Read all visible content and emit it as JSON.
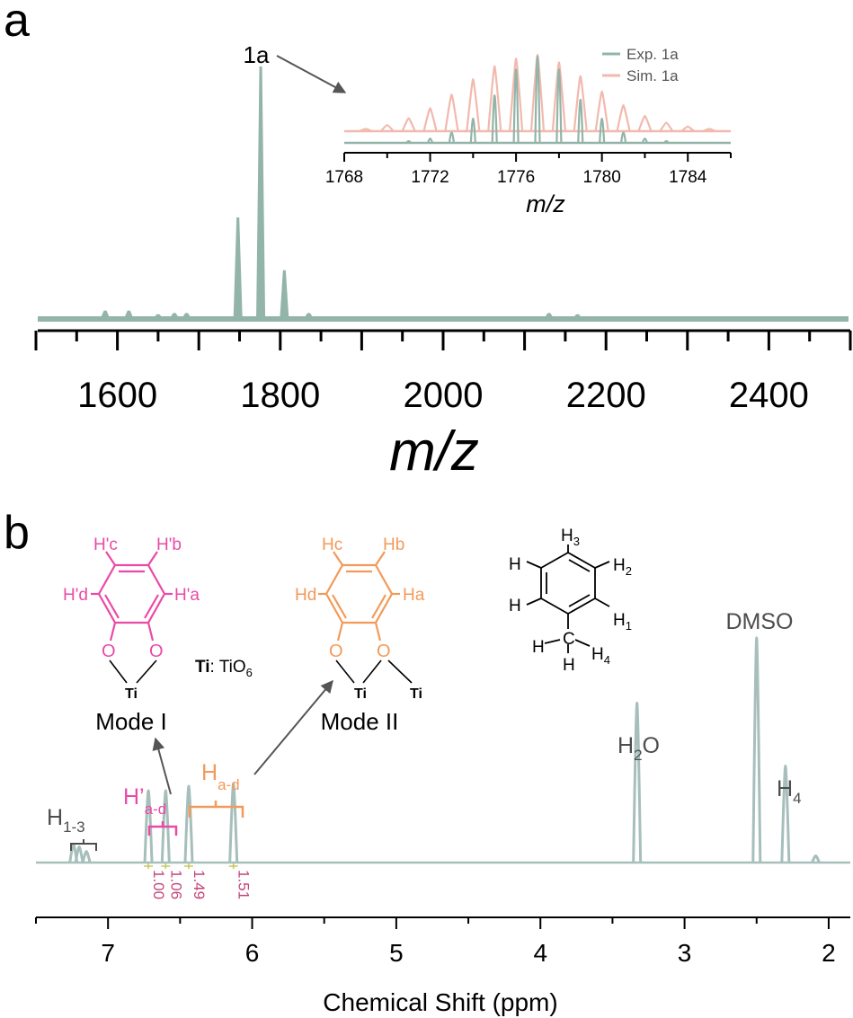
{
  "colors": {
    "exp": "#93b4a8",
    "sim": "#f2b9ae",
    "nmr": "#a7bfbb",
    "pink": "#ea4aa6",
    "orange": "#f29a5a",
    "integral": "#c2457a",
    "text": "#4d4d4d",
    "black": "#000000"
  },
  "panel_a": {
    "letter": "a",
    "peak_label": "1a"
  },
  "panel_b": {
    "letter": "b",
    "struct1": {
      "H_c": "H'c",
      "H_b": "H'b",
      "H_d": "H'd",
      "H_a": "H'a",
      "O_left": "O",
      "O_right": "O",
      "ti": "Ti",
      "mode": "Mode I"
    },
    "ti_note": {
      "bold": "Ti",
      "rest": ": TiO",
      "sub": "6"
    },
    "struct2": {
      "H_c": "Hc",
      "H_b": "Hb",
      "H_d": "Hd",
      "H_a": "Ha",
      "O_left": "O",
      "O_right": "O",
      "ti_left": "Ti",
      "ti_right": "Ti",
      "mode": "Mode II"
    },
    "toluene": {
      "H3": "H3",
      "H2": "H2",
      "H1": "H1",
      "H_left_top": "H",
      "H_left_bottom": "H",
      "C": "C",
      "H_me_left": "H",
      "H_me_bottom": "H",
      "H4": "H4"
    },
    "peak_labels": {
      "h13": "H1-3",
      "hprime": "H'a-d",
      "had": "Ha-d",
      "h2o": "H2O",
      "dmso": "DMSO",
      "h4": "H4"
    },
    "integrals": [
      "1.00",
      "1.06",
      "1.49",
      "1.51"
    ]
  },
  "chart_data": [
    {
      "type": "line",
      "panel": "a",
      "xlabel": "m/z",
      "ylabel": "",
      "xlim": [
        1500,
        2500
      ],
      "xticks": [
        1600,
        1800,
        2000,
        2200,
        2400
      ],
      "series": [
        {
          "x": [
            1585,
            1614,
            1650,
            1670,
            1685,
            1748,
            1776,
            1805,
            1835,
            2130,
            2165
          ],
          "y": [
            0.03,
            0.03,
            0.015,
            0.02,
            0.02,
            0.4,
            1.0,
            0.19,
            0.02,
            0.02,
            0.015
          ]
        }
      ]
    },
    {
      "type": "line",
      "panel": "a-inset",
      "xlabel": "m/z",
      "ylabel": "",
      "xlim": [
        1768,
        1786
      ],
      "xticks": [
        1768,
        1772,
        1776,
        1780,
        1784
      ],
      "series": [
        {
          "name": "Exp. 1a",
          "x": [
            1771,
            1772,
            1773,
            1774,
            1775,
            1776,
            1777,
            1778,
            1779,
            1780,
            1781,
            1782,
            1783
          ],
          "y": [
            0.02,
            0.05,
            0.12,
            0.28,
            0.55,
            0.85,
            1.0,
            0.85,
            0.5,
            0.28,
            0.12,
            0.05,
            0.02
          ]
        },
        {
          "name": "Sim. 1a",
          "x": [
            1769,
            1770,
            1771,
            1772,
            1773,
            1774,
            1775,
            1776,
            1777,
            1778,
            1779,
            1780,
            1781,
            1782,
            1783,
            1784,
            1785
          ],
          "y": [
            0.03,
            0.08,
            0.17,
            0.3,
            0.48,
            0.68,
            0.85,
            0.95,
            1.0,
            0.9,
            0.72,
            0.52,
            0.34,
            0.2,
            0.11,
            0.06,
            0.03
          ]
        }
      ]
    },
    {
      "type": "line",
      "panel": "b",
      "xlabel": "Chemical Shift (ppm)",
      "ylabel": "",
      "xlim": [
        7.5,
        1.85
      ],
      "xticks": [
        7,
        6,
        5,
        4,
        3,
        2
      ],
      "series": [
        {
          "x": [
            7.24,
            7.2,
            7.15,
            6.72,
            6.6,
            6.44,
            6.13,
            3.33,
            2.5,
            2.3,
            2.09
          ],
          "y": [
            0.08,
            0.07,
            0.05,
            0.32,
            0.32,
            0.34,
            0.35,
            0.71,
            1.0,
            0.43,
            0.03
          ]
        }
      ]
    }
  ]
}
